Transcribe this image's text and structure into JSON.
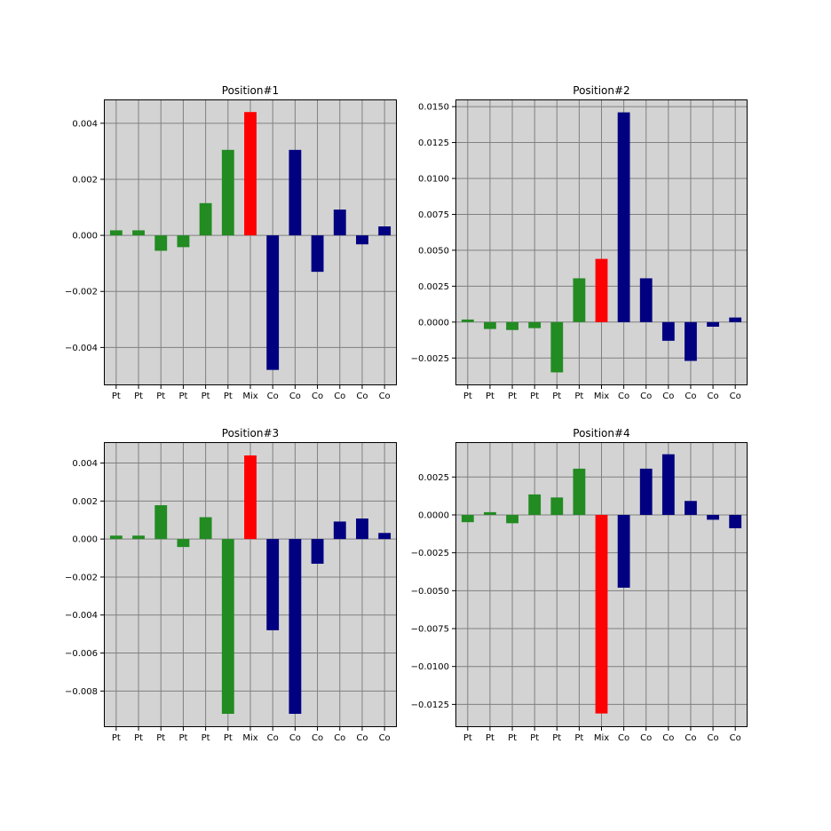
{
  "chart_data": [
    {
      "type": "bar",
      "title": "Position#1",
      "categories": [
        "Pt",
        "Pt",
        "Pt",
        "Pt",
        "Pt",
        "Pt",
        "Mix",
        "Co",
        "Co",
        "Co",
        "Co",
        "Co",
        "Co"
      ],
      "values": [
        0.00018,
        0.00018,
        -0.00055,
        -0.00042,
        0.00115,
        0.00305,
        0.0044,
        -0.0048,
        0.00305,
        -0.0013,
        0.00092,
        -0.00032,
        0.00032
      ],
      "ylim": [
        -0.00535,
        0.00485
      ],
      "yticks": [
        -0.004,
        -0.002,
        0.0,
        0.002,
        0.004
      ],
      "ytick_labels": [
        "−0.004",
        "−0.002",
        "0.000",
        "0.002",
        "0.004"
      ],
      "grid": true
    },
    {
      "type": "bar",
      "title": "Position#2",
      "categories": [
        "Pt",
        "Pt",
        "Pt",
        "Pt",
        "Pt",
        "Pt",
        "Mix",
        "Co",
        "Co",
        "Co",
        "Co",
        "Co",
        "Co"
      ],
      "values": [
        0.00018,
        -0.00048,
        -0.00055,
        -0.00042,
        -0.0035,
        0.00305,
        0.0044,
        0.0146,
        0.00305,
        -0.0013,
        -0.0027,
        -0.00032,
        0.00032
      ],
      "ylim": [
        -0.0044,
        0.0155
      ],
      "yticks": [
        -0.0025,
        0.0,
        0.0025,
        0.005,
        0.0075,
        0.01,
        0.0125,
        0.015
      ],
      "ytick_labels": [
        "−0.0025",
        "0.0000",
        "0.0025",
        "0.0050",
        "0.0075",
        "0.0100",
        "0.0125",
        "0.0150"
      ],
      "grid": true
    },
    {
      "type": "bar",
      "title": "Position#3",
      "categories": [
        "Pt",
        "Pt",
        "Pt",
        "Pt",
        "Pt",
        "Pt",
        "Mix",
        "Co",
        "Co",
        "Co",
        "Co",
        "Co",
        "Co"
      ],
      "values": [
        0.00018,
        0.00018,
        0.00178,
        -0.00042,
        0.00115,
        -0.0092,
        0.0044,
        -0.0048,
        -0.0092,
        -0.0013,
        0.00092,
        0.00108,
        0.00032
      ],
      "ylim": [
        -0.0099,
        0.0051
      ],
      "yticks": [
        -0.008,
        -0.006,
        -0.004,
        -0.002,
        0.0,
        0.002,
        0.004
      ],
      "ytick_labels": [
        "−0.008",
        "−0.006",
        "−0.004",
        "−0.002",
        "0.000",
        "0.002",
        "0.004"
      ],
      "grid": true
    },
    {
      "type": "bar",
      "title": "Position#4",
      "categories": [
        "Pt",
        "Pt",
        "Pt",
        "Pt",
        "Pt",
        "Pt",
        "Mix",
        "Co",
        "Co",
        "Co",
        "Co",
        "Co",
        "Co"
      ],
      "values": [
        -0.00048,
        0.00018,
        -0.00055,
        0.00135,
        0.00115,
        0.00305,
        -0.0131,
        -0.0048,
        0.00305,
        0.004,
        0.00092,
        -0.00032,
        -0.00088
      ],
      "ylim": [
        -0.014,
        0.0048
      ],
      "yticks": [
        -0.0125,
        -0.01,
        -0.0075,
        -0.005,
        -0.0025,
        0.0,
        0.0025
      ],
      "ytick_labels": [
        "−0.0125",
        "−0.0100",
        "−0.0075",
        "−0.0050",
        "−0.0025",
        "0.0000",
        "0.0025"
      ],
      "grid": true
    }
  ],
  "colors": {
    "pt": "#228B22",
    "mix": "#FF0000",
    "co": "#000080",
    "panel_bg": "#D3D3D3",
    "grid": "#808080"
  }
}
